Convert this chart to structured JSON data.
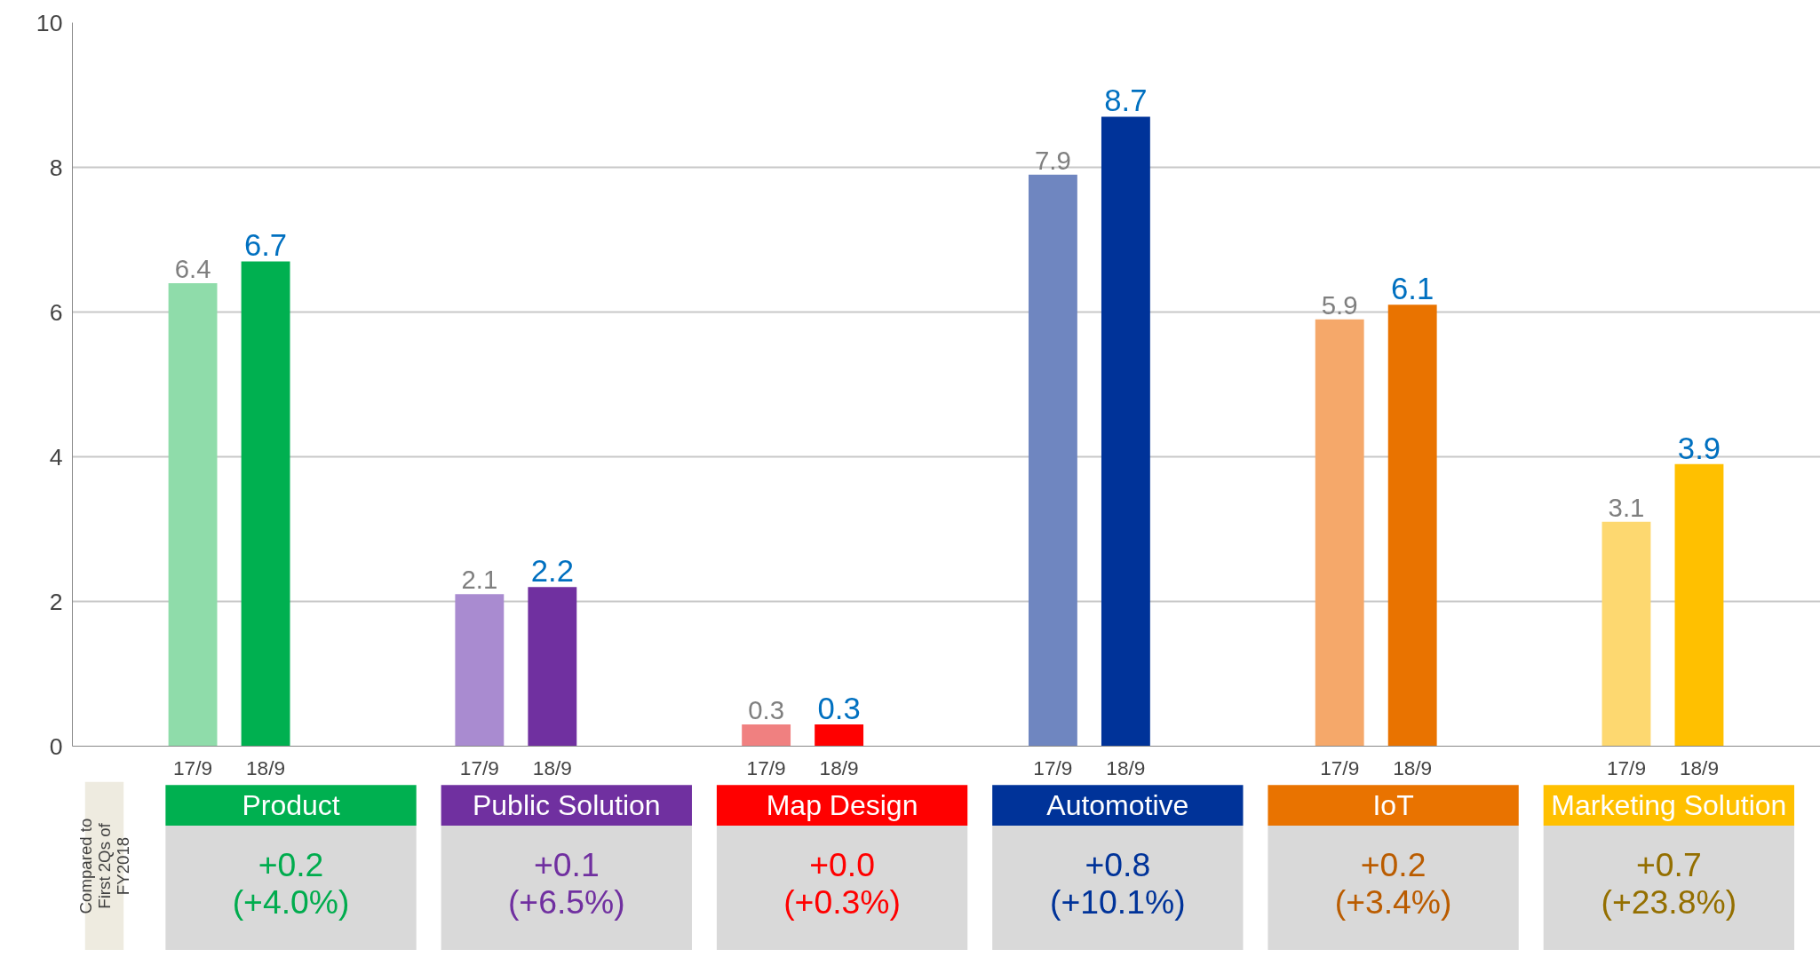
{
  "chart_data": {
    "type": "bar",
    "categories": [
      "Product",
      "Public Solution",
      "Map Design",
      "Automotive",
      "IoT",
      "Marketing Solution"
    ],
    "series": [
      {
        "name": "17/9",
        "colors": [
          "#8fdcaa",
          "#a98bd0",
          "#f08080",
          "#6f86c0",
          "#f5a86a",
          "#fdd870"
        ],
        "values": [
          6.4,
          2.1,
          0.3,
          7.9,
          5.9,
          3.1
        ]
      },
      {
        "name": "18/9",
        "colors": [
          "#00b050",
          "#7030a0",
          "#ff0000",
          "#003399",
          "#e97300",
          "#ffc000"
        ],
        "values": [
          6.7,
          2.2,
          0.3,
          8.7,
          6.1,
          3.9
        ]
      }
    ],
    "ylim": [
      0,
      10
    ],
    "yticks": [
      0,
      2,
      4,
      6,
      8,
      10
    ],
    "grid": "y",
    "data_labels": true,
    "annotations": [
      "+0.2\n(+4.0%)",
      "+0.1\n(+6.5%)",
      "+0.0\n(+0.3%)",
      "+0.8\n(+10.1%)",
      "+0.2\n(+3.4%)",
      "+0.7\n(+23.8%)",
      "Compared to\nFirst 2Qs of\nFY2018"
    ]
  }
}
